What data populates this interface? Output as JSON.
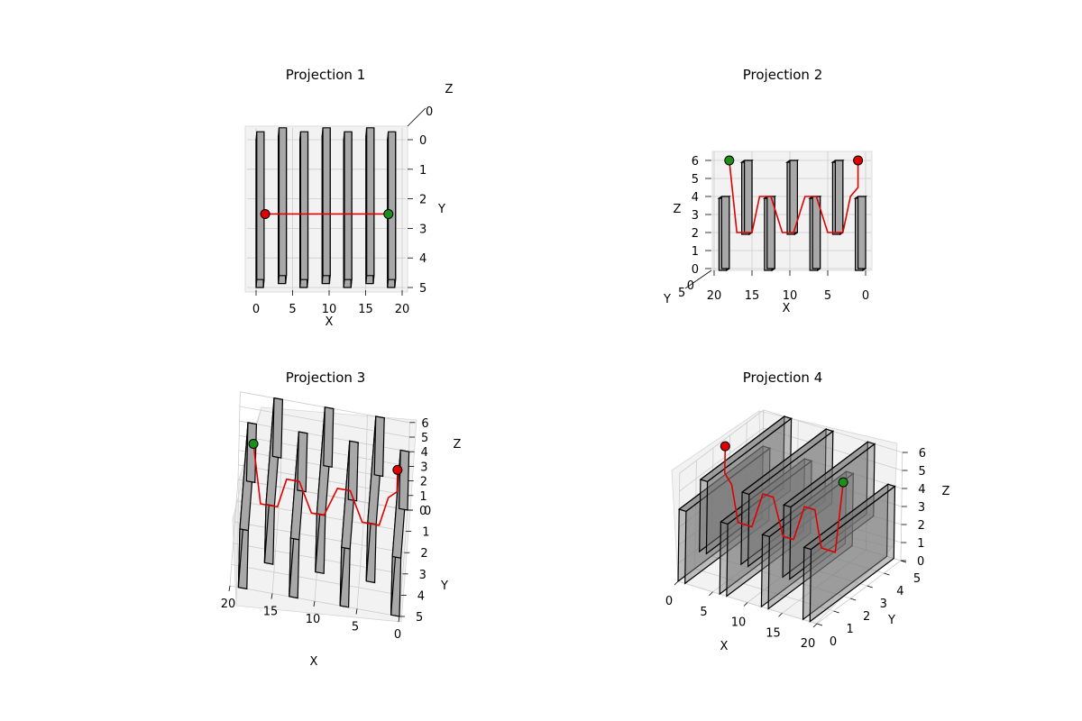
{
  "chart_data": [
    {
      "type": "3d-path",
      "title": "Projection 1",
      "xlabel": "X",
      "ylabel": "Y",
      "zlabel": "Z",
      "xlim": [
        0,
        20
      ],
      "ylim": [
        0,
        5
      ],
      "zlim": [
        0,
        6
      ],
      "x_ticks": [
        "0",
        "5",
        "10",
        "15",
        "20"
      ],
      "y_ticks": [
        "0",
        "1",
        "2",
        "3",
        "4",
        "5"
      ],
      "z_ticks": [
        "0"
      ],
      "grid": true
    },
    {
      "type": "3d-path",
      "title": "Projection 2",
      "xlabel": "X",
      "ylabel": "Y",
      "zlabel": "Z",
      "xlim": [
        0,
        20
      ],
      "ylim": [
        0,
        5
      ],
      "zlim": [
        0,
        6
      ],
      "x_ticks": [
        "20",
        "15",
        "10",
        "5",
        "0"
      ],
      "y_ticks": [
        "5",
        "0"
      ],
      "z_ticks": [
        "0",
        "1",
        "2",
        "3",
        "4",
        "5",
        "6"
      ],
      "grid": true
    },
    {
      "type": "3d-path",
      "title": "Projection 3",
      "xlabel": "X",
      "ylabel": "Y",
      "zlabel": "Z",
      "xlim": [
        0,
        20
      ],
      "ylim": [
        0,
        5
      ],
      "zlim": [
        0,
        6
      ],
      "x_ticks": [
        "20",
        "15",
        "10",
        "5",
        "0"
      ],
      "y_ticks": [
        "0",
        "1",
        "2",
        "3",
        "4",
        "5"
      ],
      "z_ticks": [
        "0",
        "1",
        "2",
        "3",
        "4",
        "5",
        "6"
      ],
      "grid": true
    },
    {
      "type": "3d-path",
      "title": "Projection 4",
      "xlabel": "X",
      "ylabel": "Y",
      "zlabel": "Z",
      "xlim": [
        0,
        20
      ],
      "ylim": [
        0,
        5
      ],
      "zlim": [
        0,
        6
      ],
      "x_ticks": [
        "0",
        "5",
        "10",
        "15",
        "20"
      ],
      "y_ticks": [
        "0",
        "1",
        "2",
        "3",
        "4",
        "5"
      ],
      "z_ticks": [
        "0",
        "1",
        "2",
        "3",
        "4",
        "5",
        "6"
      ],
      "grid": true
    }
  ],
  "walls": [
    {
      "x": 0.5,
      "y": [
        0,
        5
      ],
      "z": [
        0,
        4
      ]
    },
    {
      "x": 3.5,
      "y": [
        0,
        5
      ],
      "z": [
        2,
        6
      ]
    },
    {
      "x": 6.5,
      "y": [
        0,
        5
      ],
      "z": [
        0,
        4
      ]
    },
    {
      "x": 9.5,
      "y": [
        0,
        5
      ],
      "z": [
        2,
        6
      ]
    },
    {
      "x": 12.5,
      "y": [
        0,
        5
      ],
      "z": [
        0,
        4
      ]
    },
    {
      "x": 15.5,
      "y": [
        0,
        5
      ],
      "z": [
        2,
        6
      ]
    },
    {
      "x": 18.5,
      "y": [
        0,
        5
      ],
      "z": [
        0,
        4
      ]
    }
  ],
  "path": {
    "start": {
      "x": 18,
      "y": 2.3,
      "z": 6
    },
    "goal": {
      "x": 1,
      "y": 2.3,
      "z": 6
    },
    "points": [
      [
        18,
        2.3,
        6
      ],
      [
        17,
        2.3,
        2
      ],
      [
        15,
        2.3,
        2
      ],
      [
        14,
        2.3,
        4
      ],
      [
        12.5,
        2.3,
        4
      ],
      [
        11,
        2.3,
        2
      ],
      [
        9.5,
        2.3,
        2
      ],
      [
        8,
        2.3,
        4
      ],
      [
        6.5,
        2.3,
        4
      ],
      [
        5,
        2.3,
        2
      ],
      [
        3,
        2.3,
        2
      ],
      [
        2,
        2.3,
        4
      ],
      [
        1,
        2.3,
        4.5
      ],
      [
        1,
        2.3,
        6
      ]
    ],
    "colors": {
      "path": "#e00000",
      "start": "#1a8f1a",
      "goal": "#e00000",
      "wall": "#a8a8a8"
    }
  }
}
